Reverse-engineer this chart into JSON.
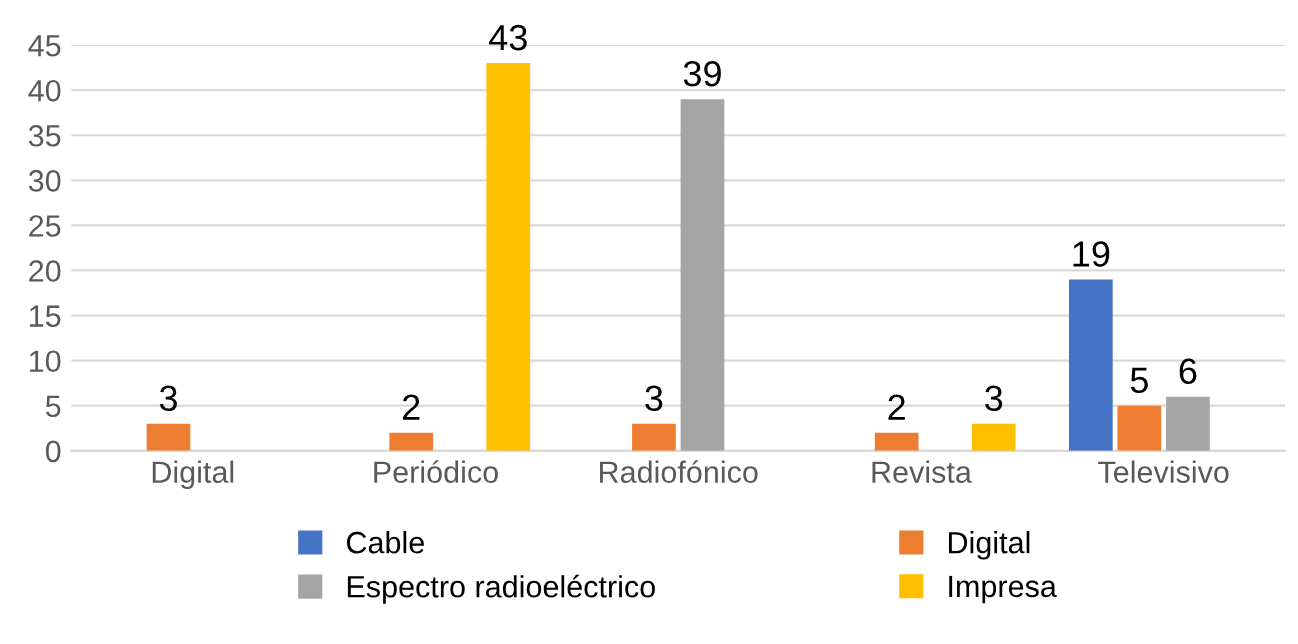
{
  "chart_data": {
    "type": "bar",
    "categories": [
      "Digital",
      "Periódico",
      "Radiofónico",
      "Revista",
      "Televisivo"
    ],
    "series": [
      {
        "name": "Cable",
        "color": "#4472c4",
        "values": [
          null,
          null,
          null,
          null,
          19
        ]
      },
      {
        "name": "Digital",
        "color": "#ed7d31",
        "values": [
          3,
          2,
          3,
          2,
          5
        ]
      },
      {
        "name": "Espectro radioeléctrico",
        "color": "#a5a5a5",
        "values": [
          null,
          null,
          39,
          null,
          6
        ]
      },
      {
        "name": "Impresa",
        "color": "#ffc000",
        "values": [
          null,
          43,
          null,
          3,
          null
        ]
      }
    ],
    "ylim": [
      0,
      45
    ],
    "yticks": [
      0,
      5,
      10,
      15,
      20,
      25,
      30,
      35,
      40,
      45
    ],
    "grid": "y",
    "legend": "bottom",
    "data_labels": true
  }
}
